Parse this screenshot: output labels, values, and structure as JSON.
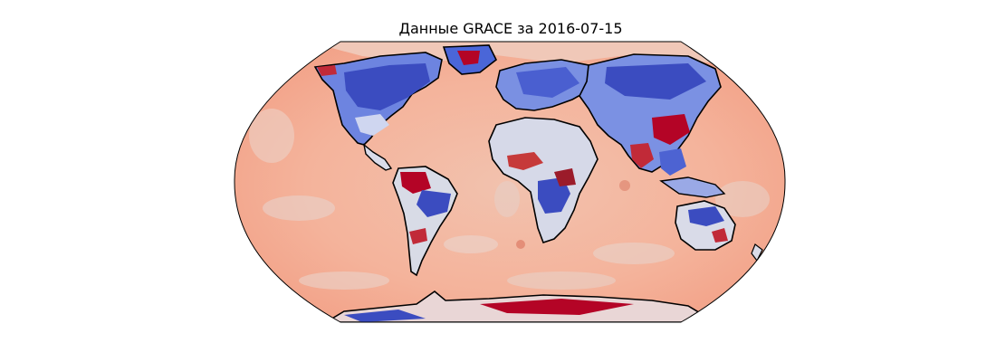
{
  "figure": {
    "title": "Данные GRACE за 2016-07-15"
  },
  "colormap": {
    "name": "coolwarm",
    "low": "#3b4cc0",
    "mid": "#dddddd",
    "high": "#b40426",
    "ocean_tint": "#f4b39b"
  }
}
